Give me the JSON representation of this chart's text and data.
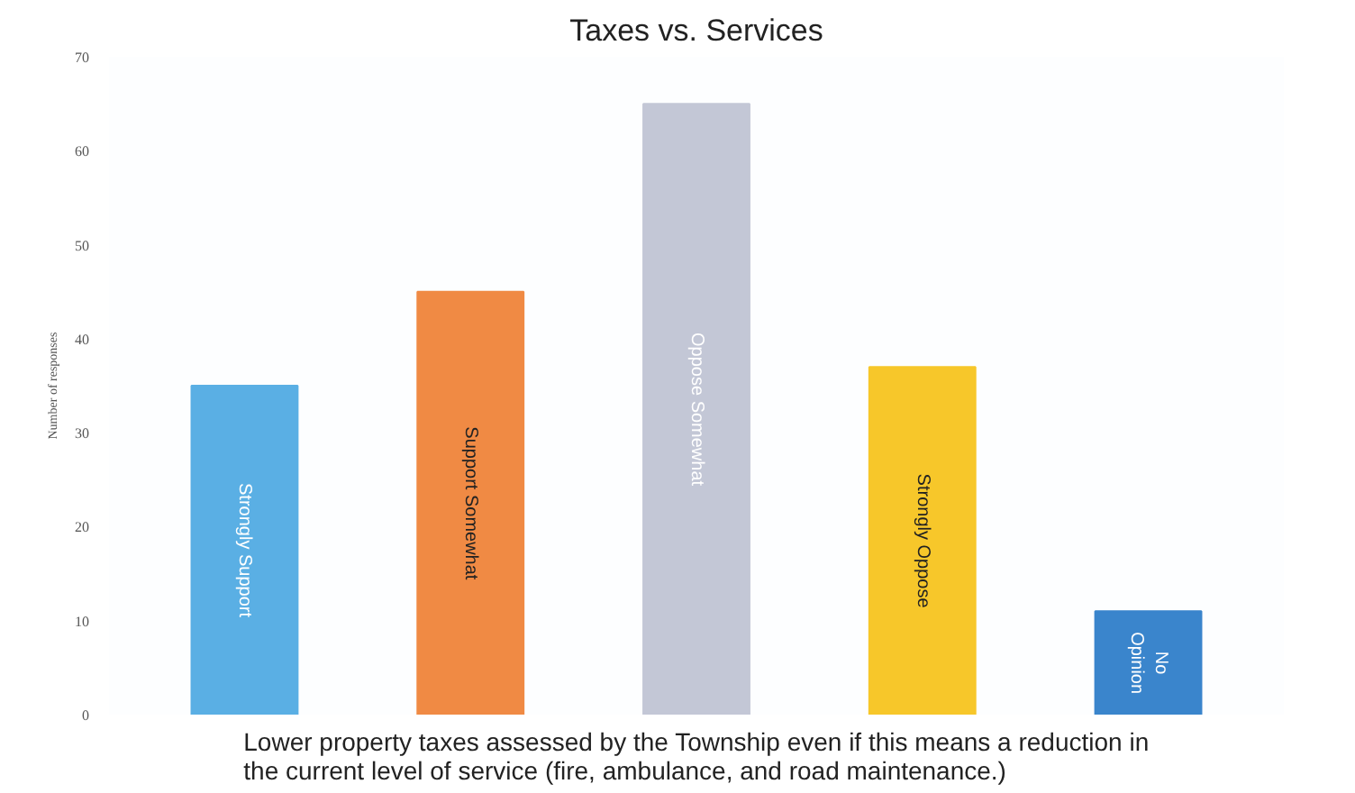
{
  "chart_data": {
    "type": "bar",
    "title": "Taxes vs. Services",
    "xlabel": "Lower property taxes assessed by the Township even if this means a reduction in\nthe current level of service (fire, ambulance, and road maintenance.)",
    "ylabel": "Number of responses",
    "categories": [
      "Strongly Support",
      "Support Somewhat",
      "Oppose Somewhat",
      "Strongly Oppose",
      "No Opinion"
    ],
    "values": [
      35,
      45,
      65,
      37,
      11
    ],
    "colors": [
      "#5aafe4",
      "#f08a44",
      "#c3c7d6",
      "#f7c72a",
      "#3a85cc"
    ],
    "ylim": [
      0,
      70
    ],
    "yticks": [
      0,
      10,
      20,
      30,
      40,
      50,
      60,
      70
    ],
    "grid": false
  }
}
